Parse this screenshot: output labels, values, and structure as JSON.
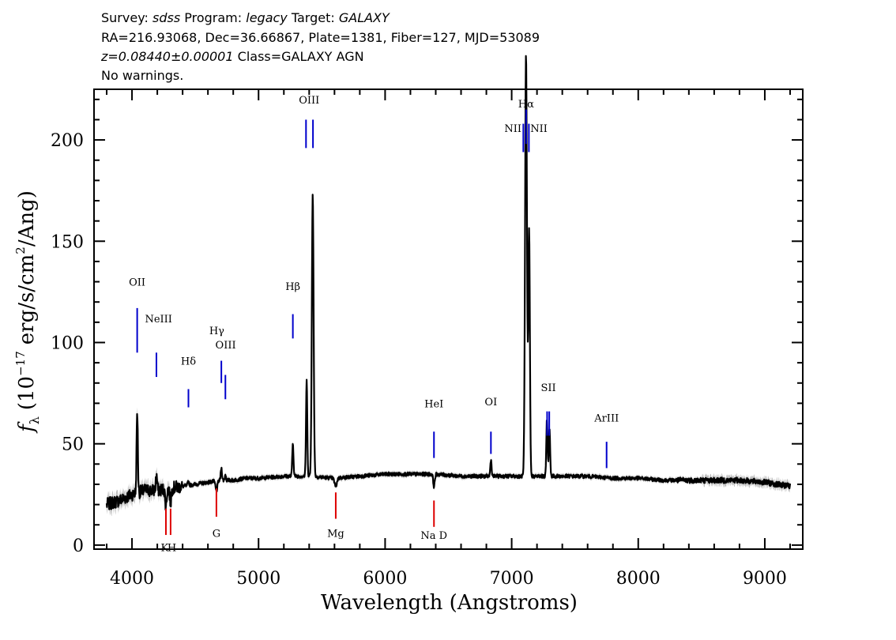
{
  "header": {
    "line1": {
      "survey_label": "Survey:",
      "survey": "sdss",
      "program_label": "Program:",
      "program": "legacy",
      "target_label": "Target:",
      "target": "GALAXY"
    },
    "line2": "RA=216.93068, Dec=36.66867, Plate=1381, Fiber=127, MJD=53089",
    "line3": {
      "redshift": "z=0.08440±0.00001",
      "class": "Class=GALAXY AGN"
    },
    "line4": "No warnings."
  },
  "chart_data": {
    "type": "line",
    "xlabel": "Wavelength (Angstroms)",
    "ylabel_parts": {
      "f": "f",
      "lambda": "λ",
      "pre": "(10",
      "exp1": "−17",
      "mid": "erg/s/cm",
      "exp2": "2",
      "post": "/Ang)"
    },
    "xlim": [
      3700,
      9300
    ],
    "ylim": [
      -2,
      225
    ],
    "xticks": [
      4000,
      5000,
      6000,
      7000,
      8000,
      9000
    ],
    "yticks": [
      0,
      50,
      100,
      150,
      200
    ],
    "continuum": [
      [
        3800,
        20
      ],
      [
        3900,
        22
      ],
      [
        4000,
        25
      ],
      [
        4100,
        27
      ],
      [
        4200,
        27
      ],
      [
        4300,
        28
      ],
      [
        4400,
        29
      ],
      [
        4500,
        30
      ],
      [
        4600,
        31
      ],
      [
        4700,
        32
      ],
      [
        4800,
        32
      ],
      [
        4900,
        33
      ],
      [
        5000,
        33
      ],
      [
        5200,
        34
      ],
      [
        5400,
        34
      ],
      [
        5600,
        33
      ],
      [
        5800,
        34
      ],
      [
        6000,
        35
      ],
      [
        6200,
        35
      ],
      [
        6400,
        35
      ],
      [
        6600,
        34
      ],
      [
        6800,
        34
      ],
      [
        7000,
        34
      ],
      [
        7200,
        34
      ],
      [
        7400,
        34
      ],
      [
        7600,
        34
      ],
      [
        7800,
        33
      ],
      [
        8000,
        33
      ],
      [
        8200,
        32
      ],
      [
        8400,
        32
      ],
      [
        8600,
        32
      ],
      [
        8800,
        32
      ],
      [
        9000,
        31
      ],
      [
        9200,
        29
      ]
    ],
    "features": [
      {
        "x": 4041,
        "h": 40,
        "w": 5
      },
      {
        "x": 4193,
        "h": 8,
        "w": 5
      },
      {
        "x": 4446,
        "h": 2,
        "w": 5
      },
      {
        "x": 4706,
        "h": 6,
        "w": 5
      },
      {
        "x": 4738,
        "h": 3,
        "w": 4
      },
      {
        "x": 5271,
        "h": 16,
        "w": 5
      },
      {
        "x": 5380,
        "h": 47,
        "w": 5
      },
      {
        "x": 5428,
        "h": 139,
        "w": 7
      },
      {
        "x": 6836,
        "h": 8,
        "w": 5
      },
      {
        "x": 7112,
        "h": 50,
        "w": 6
      },
      {
        "x": 7114,
        "h": 160,
        "w": 8
      },
      {
        "x": 7138,
        "h": 120,
        "w": 6
      },
      {
        "x": 7279,
        "h": 28,
        "w": 5
      },
      {
        "x": 7299,
        "h": 24,
        "w": 5
      },
      {
        "x": 4268,
        "h": -8,
        "w": 6
      },
      {
        "x": 4305,
        "h": -7,
        "w": 6
      },
      {
        "x": 4667,
        "h": -5,
        "w": 7
      },
      {
        "x": 5610,
        "h": -4,
        "w": 9
      },
      {
        "x": 6386,
        "h": -6,
        "w": 6
      }
    ],
    "emission_lines": [
      {
        "label": "OII",
        "x": 4041,
        "y0": 95,
        "y1": 117,
        "lx": 4041,
        "ly": 128
      },
      {
        "label": "NeIII",
        "x": 4193,
        "y0": 83,
        "y1": 95,
        "lx": 4210,
        "ly": 110
      },
      {
        "label": "Hδ",
        "x": 4446,
        "y0": 68,
        "y1": 77,
        "lx": 4446,
        "ly": 89
      },
      {
        "label": "Hγ",
        "x": 4706,
        "y0": 80,
        "y1": 91,
        "lx": 4670,
        "ly": 104
      },
      {
        "label": "OIII",
        "x": 4738,
        "y0": 72,
        "y1": 84,
        "lx": 4740,
        "ly": 97
      },
      {
        "label": "Hβ",
        "x": 5271,
        "y0": 102,
        "y1": 114,
        "lx": 5271,
        "ly": 126
      },
      {
        "label": "OIII",
        "x": 5375,
        "y0": 196,
        "y1": 210,
        "lx": 5400,
        "ly": 218
      },
      {
        "label": "OIII",
        "x": 5430,
        "y0": 196,
        "y1": 210,
        "lx": null,
        "ly": null
      },
      {
        "label": "NII",
        "x": 7092,
        "y0": 194,
        "y1": 208,
        "lx": 7010,
        "ly": 204
      },
      {
        "label": "Hα",
        "x": 7114,
        "y0": 198,
        "y1": 215,
        "lx": 7114,
        "ly": 216
      },
      {
        "label": "NII",
        "x": 7136,
        "y0": 194,
        "y1": 208,
        "lx": 7215,
        "ly": 204
      },
      {
        "label": "SII",
        "x": 7280,
        "y0": 54,
        "y1": 66,
        "lx": 7290,
        "ly": 76
      },
      {
        "label": "SII",
        "x": 7297,
        "y0": 54,
        "y1": 66,
        "lx": null,
        "ly": null
      },
      {
        "label": "HeI",
        "x": 6386,
        "y0": 43,
        "y1": 56,
        "lx": 6386,
        "ly": 68
      },
      {
        "label": "OI",
        "x": 6836,
        "y0": 45,
        "y1": 56,
        "lx": 6836,
        "ly": 69
      },
      {
        "label": "ArIII",
        "x": 7750,
        "y0": 38,
        "y1": 51,
        "lx": 7750,
        "ly": 61
      }
    ],
    "absorption_lines": [
      {
        "label": "K",
        "x": 4268,
        "y0": 5,
        "y1": 18,
        "lx": 4258,
        "ly": -3
      },
      {
        "label": "H",
        "x": 4305,
        "y0": 5,
        "y1": 18,
        "lx": 4315,
        "ly": -3
      },
      {
        "label": "G",
        "x": 4667,
        "y0": 14,
        "y1": 28,
        "lx": 4667,
        "ly": 4
      },
      {
        "label": "Mg",
        "x": 5610,
        "y0": 13,
        "y1": 26,
        "lx": 5610,
        "ly": 4
      },
      {
        "label": "Na D",
        "x": 6386,
        "y0": 9,
        "y1": 22,
        "lx": 6386,
        "ly": 3
      }
    ],
    "colors": {
      "flux": "#000000",
      "error_band": "#bdbdbd",
      "emission": "#0000cc",
      "absorption": "#dd0000"
    }
  }
}
